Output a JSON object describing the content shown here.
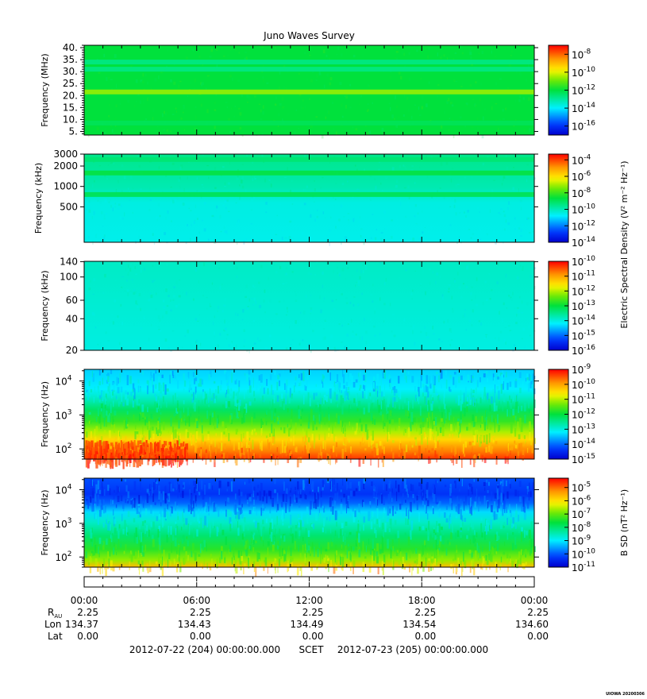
{
  "title": "Juno Waves Survey",
  "chart_data": [
    {
      "type": "heatmap",
      "ylabel": "Frequency (MHz)",
      "yscale": "linear",
      "ylim": [
        3.5,
        41
      ],
      "yticks": [
        5,
        10,
        15,
        20,
        25,
        30,
        35,
        40
      ],
      "ytick_labels": [
        "5.",
        "10.",
        "15.",
        "20.",
        "25.",
        "30.",
        "35.",
        "40."
      ],
      "bands": [
        {
          "freq": 21.5,
          "log10_value": -10.5
        },
        {
          "freq": 8.5,
          "log10_value": -12.3
        },
        {
          "freq": 34,
          "log10_value": -12.8
        },
        {
          "freq": 31,
          "log10_value": -12.8
        }
      ],
      "colorbar": {
        "log10_range": [
          -17,
          -7
        ],
        "tick_exponents": [
          -16,
          -14,
          -12,
          -10,
          -8
        ]
      }
    },
    {
      "type": "heatmap",
      "ylabel": "Frequency (kHz)",
      "yscale": "log",
      "ylim": [
        150,
        3000
      ],
      "yticks": [
        500,
        1000,
        2000,
        3000
      ],
      "ytick_labels": [
        "500",
        "1000",
        "2000",
        "3000"
      ],
      "bands": [
        {
          "freq": 2500,
          "log10_value": -9.2
        },
        {
          "freq": 1580,
          "log10_value": -8.6
        },
        {
          "freq": 760,
          "log10_value": -8.8
        }
      ],
      "colorbar": {
        "log10_range": [
          -14,
          -3.3
        ],
        "tick_exponents": [
          -14,
          -12,
          -10,
          -8,
          -6,
          -4
        ]
      }
    },
    {
      "type": "heatmap",
      "ylabel": "Frequency (kHz)",
      "yscale": "log",
      "ylim": [
        20,
        141
      ],
      "yticks": [
        20,
        40,
        60,
        100,
        140
      ],
      "ytick_labels": [
        "20",
        "40",
        "60",
        "100",
        "140"
      ],
      "colorbar": {
        "log10_range": [
          -16,
          -10
        ],
        "tick_exponents": [
          -16,
          -15,
          -14,
          -13,
          -12,
          -11,
          -10
        ]
      }
    },
    {
      "type": "heatmap",
      "ylabel": "Frequency (Hz)",
      "yscale": "log",
      "ylim": [
        50,
        22000
      ],
      "ytick_exponents": [
        2,
        3,
        4
      ],
      "colorbar": {
        "log10_range": [
          -15,
          -9
        ],
        "tick_exponents": [
          -15,
          -14,
          -13,
          -12,
          -11,
          -10,
          -9
        ]
      }
    },
    {
      "type": "heatmap",
      "ylabel": "Frequency (Hz)",
      "yscale": "log",
      "ylim": [
        50,
        22000
      ],
      "ytick_exponents": [
        2,
        3,
        4
      ],
      "colorbar": {
        "log10_range": [
          -11,
          -4.3
        ],
        "tick_exponents": [
          -11,
          -10,
          -9,
          -8,
          -7,
          -6,
          -5
        ]
      }
    }
  ],
  "colorbar_labels": {
    "electric": "Electric Spectral Density (V² m⁻² Hz⁻¹)",
    "magnetic": "B SD (nT² Hz⁻¹)"
  },
  "time_axis": {
    "ticks": [
      "00:00",
      "06:00",
      "12:00",
      "18:00",
      "00:00"
    ]
  },
  "ephemeris": [
    {
      "label": "R",
      "sub": "AU",
      "values": [
        "2.25",
        "2.25",
        "2.25",
        "2.25",
        "2.25"
      ]
    },
    {
      "label": "Lon",
      "values": [
        "134.37",
        "134.43",
        "134.49",
        "134.54",
        "134.60"
      ]
    },
    {
      "label": "Lat",
      "values": [
        "0.00",
        "0.00",
        "0.00",
        "0.00",
        "0.00"
      ]
    }
  ],
  "footer": {
    "start": "2012-07-22 (204) 00:00:00.000",
    "frame": "SCET",
    "end": "2012-07-23 (205) 00:00:00.000"
  },
  "credit": "UIOWA 20200306"
}
